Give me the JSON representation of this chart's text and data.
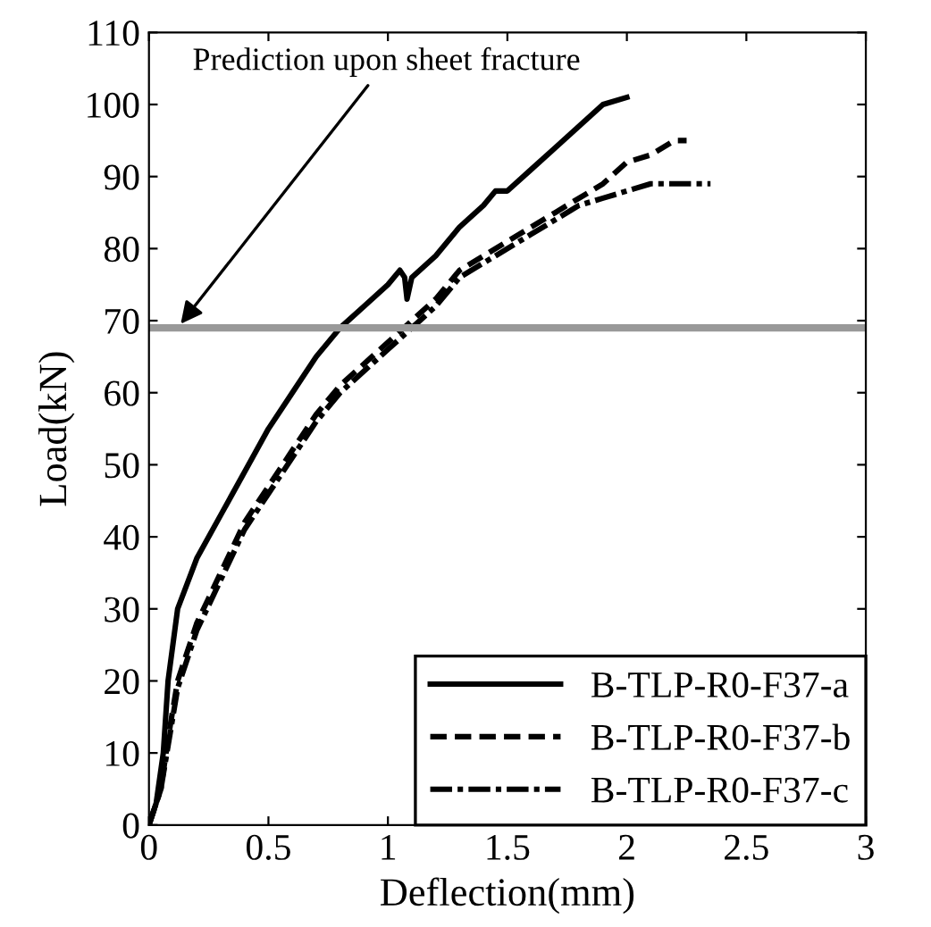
{
  "chart_data": {
    "type": "line",
    "xlabel": "Deflection(mm)",
    "ylabel": "Load(kN)",
    "xlim": [
      0,
      3
    ],
    "xticks": [
      0,
      0.5,
      1,
      1.5,
      2,
      2.5,
      3
    ],
    "ylim": [
      0,
      110
    ],
    "yticks": [
      0,
      10,
      20,
      30,
      40,
      50,
      60,
      70,
      80,
      90,
      100,
      110
    ],
    "grid": false,
    "legend": "bottom right",
    "marker": "none",
    "series": [
      {
        "name": "B-TLP-R0-F37-a",
        "color": "#000000",
        "line_style": "solid",
        "x": [
          0,
          0.03,
          0.06,
          0.08,
          0.12,
          0.2,
          0.3,
          0.4,
          0.5,
          0.6,
          0.7,
          0.8,
          0.9,
          1.0,
          1.05,
          1.07,
          1.08,
          1.1,
          1.2,
          1.3,
          1.4,
          1.45,
          1.5,
          1.6,
          1.7,
          1.8,
          1.9,
          2.0
        ],
        "values": [
          0,
          3,
          10,
          20,
          30,
          37,
          43,
          49,
          55,
          60,
          65,
          69,
          72,
          75,
          77,
          76,
          73,
          76,
          79,
          83,
          86,
          88,
          88,
          91,
          94,
          97,
          100,
          101
        ]
      },
      {
        "name": "B-TLP-R0-F37-b",
        "color": "#000000",
        "line_style": "dashed",
        "x": [
          0,
          0.05,
          0.08,
          0.12,
          0.2,
          0.3,
          0.4,
          0.5,
          0.6,
          0.7,
          0.8,
          0.9,
          1.0,
          1.1,
          1.2,
          1.3,
          1.4,
          1.5,
          1.6,
          1.7,
          1.8,
          1.9,
          2.0,
          2.1,
          2.2,
          2.25
        ],
        "values": [
          0,
          5,
          12,
          20,
          28,
          35,
          42,
          47,
          52,
          57,
          61,
          64,
          67,
          70,
          73,
          77,
          79,
          81,
          83,
          85,
          87,
          89,
          92,
          93,
          95,
          95
        ]
      },
      {
        "name": "B-TLP-R0-F37-c",
        "color": "#000000",
        "line_style": "dashdot",
        "x": [
          0,
          0.05,
          0.08,
          0.12,
          0.2,
          0.3,
          0.4,
          0.5,
          0.6,
          0.7,
          0.8,
          0.9,
          1.0,
          1.1,
          1.2,
          1.3,
          1.4,
          1.5,
          1.6,
          1.7,
          1.8,
          1.9,
          2.0,
          2.1,
          2.2,
          2.35
        ],
        "values": [
          0,
          5,
          11,
          19,
          27,
          34,
          41,
          46,
          51,
          56,
          60,
          63,
          66,
          69,
          72,
          76,
          78,
          80,
          82,
          84,
          86,
          87,
          88,
          89,
          89,
          89
        ]
      }
    ],
    "ref_lines": [
      {
        "axis": "y",
        "value": 69,
        "color": "#999999"
      }
    ],
    "annotations": [
      {
        "text": "Prediction upon sheet fracture",
        "x": 0.12,
        "y": 69
      }
    ]
  }
}
